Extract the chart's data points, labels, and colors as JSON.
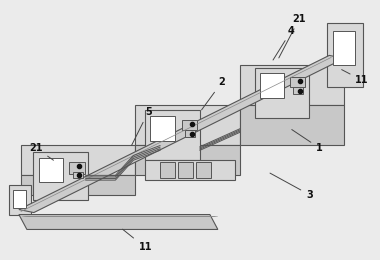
{
  "bg_color": "#ebebeb",
  "lc": "#555555",
  "fc_light": "#d8d8d8",
  "fc_mid": "#c8c8c8",
  "fc_white": "#ffffff"
}
